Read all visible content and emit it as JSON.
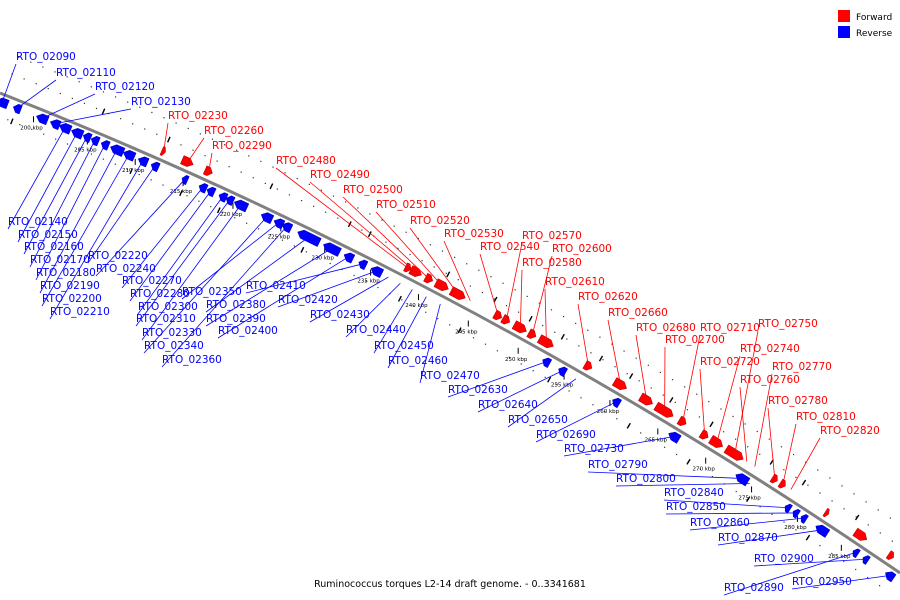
{
  "caption": "Ruminococcus torques L2-14 draft genome. - 0..3341681",
  "legend": [
    {
      "label": "Forward",
      "color": "#ff0000"
    },
    {
      "label": "Reverse",
      "color": "#0000ff"
    }
  ],
  "colors": {
    "forward": "#ff0000",
    "reverse": "#0000ff",
    "backbone": "#808080",
    "ruler": "#000000"
  },
  "ruler": [
    "200 kbp",
    "205 kbp",
    "210 kbp",
    "215 kbp",
    "220 kbp",
    "225 kbp",
    "230 kbp",
    "235 kbp",
    "240 kbp",
    "245 kbp",
    "250 kbp",
    "255 kbp",
    "260 kbp",
    "265 kbp",
    "270 kbp",
    "275 kbp",
    "280 kbp",
    "285 kbp"
  ],
  "forward_labels": [
    "RTO_02230",
    "RTO_02260",
    "RTO_02290",
    "RTO_02480",
    "RTO_02490",
    "RTO_02500",
    "RTO_02510",
    "RTO_02520",
    "RTO_02530",
    "RTO_02540",
    "RTO_02570",
    "RTO_02580",
    "RTO_02600",
    "RTO_02610",
    "RTO_02620",
    "RTO_02660",
    "RTO_02680",
    "RTO_02700",
    "RTO_02710",
    "RTO_02720",
    "RTO_02740",
    "RTO_02750",
    "RTO_02760",
    "RTO_02770",
    "RTO_02780",
    "RTO_02810",
    "RTO_02820"
  ],
  "reverse_labels": [
    "RTO_02090",
    "RTO_02110",
    "RTO_02120",
    "RTO_02130",
    "RTO_02140",
    "RTO_02150",
    "RTO_02160",
    "RTO_02170",
    "RTO_02180",
    "RTO_02190",
    "RTO_02200",
    "RTO_02210",
    "RTO_02220",
    "RTO_02240",
    "RTO_02270",
    "RTO_02280",
    "RTO_02300",
    "RTO_02310",
    "RTO_02330",
    "RTO_02340",
    "RTO_02350",
    "RTO_02360",
    "RTO_02380",
    "RTO_02390",
    "RTO_02400",
    "RTO_02410",
    "RTO_02420",
    "RTO_02430",
    "RTO_02440",
    "RTO_02450",
    "RTO_02460",
    "RTO_02470",
    "RTO_02630",
    "RTO_02640",
    "RTO_02650",
    "RTO_02690",
    "RTO_02730",
    "RTO_02790",
    "RTO_02800",
    "RTO_02840",
    "RTO_02850",
    "RTO_02860",
    "RTO_02870",
    "RTO_02890",
    "RTO_02900",
    "RTO_02950"
  ]
}
